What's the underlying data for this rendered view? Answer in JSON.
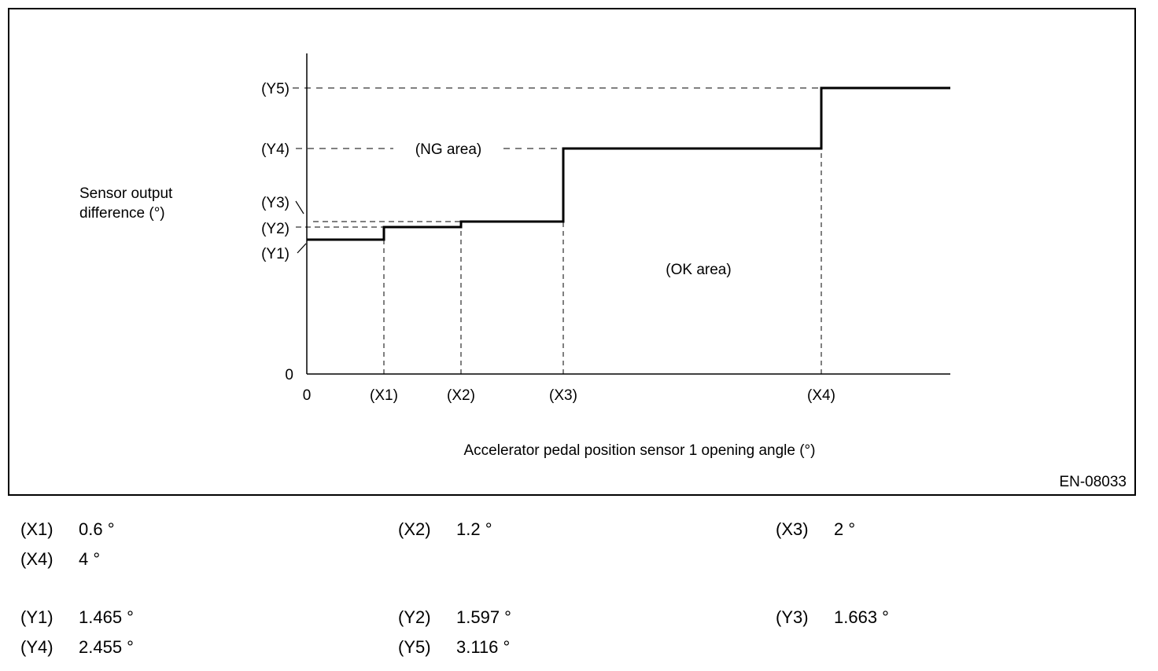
{
  "figure_id": "EN-08033",
  "chart_data": {
    "type": "line",
    "step": true,
    "ylabel_lines": [
      "Sensor output",
      "difference (°)"
    ],
    "xlabel": "Accelerator pedal position sensor 1 opening angle (°)",
    "x_ticks": [
      "0",
      "(X1)",
      "(X2)",
      "(X3)",
      "(X4)"
    ],
    "y_ticks": [
      "0",
      "(Y1)",
      "(Y2)",
      "(Y3)",
      "(Y4)",
      "(Y5)"
    ],
    "x": [
      0,
      0.6,
      1.2,
      2,
      4
    ],
    "y": [
      1.465,
      1.597,
      1.663,
      2.455,
      3.116
    ],
    "ok_area_label": "(OK area)",
    "ng_area_label": "(NG area)"
  },
  "legend": {
    "x_rows": [
      [
        {
          "label": "(X1)",
          "value": "0.6 °"
        },
        {
          "label": "(X2)",
          "value": "1.2 °"
        },
        {
          "label": "(X3)",
          "value": "2 °"
        }
      ],
      [
        {
          "label": "(X4)",
          "value": "4 °"
        }
      ]
    ],
    "y_rows": [
      [
        {
          "label": "(Y1)",
          "value": "1.465 °"
        },
        {
          "label": "(Y2)",
          "value": "1.597 °"
        },
        {
          "label": "(Y3)",
          "value": "1.663 °"
        }
      ],
      [
        {
          "label": "(Y4)",
          "value": "2.455 °"
        },
        {
          "label": "(Y5)",
          "value": "3.116 °"
        }
      ]
    ]
  }
}
